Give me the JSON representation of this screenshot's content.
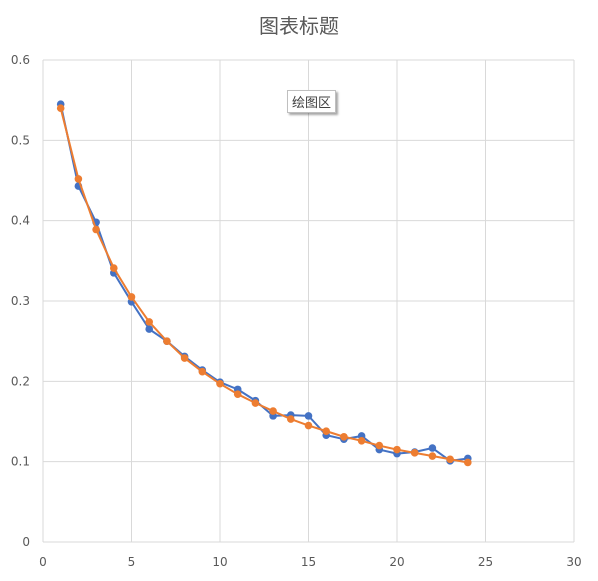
{
  "chart_data": {
    "type": "scatter",
    "title": "图表标题",
    "xlabel": "",
    "ylabel": "",
    "xlim": [
      0,
      30
    ],
    "ylim": [
      0,
      0.6
    ],
    "xticks": [
      0,
      5,
      10,
      15,
      20,
      25,
      30
    ],
    "yticks": [
      0,
      0.1,
      0.2,
      0.3,
      0.4,
      0.5,
      0.6
    ],
    "grid": true,
    "plot_area_tag": "绘图区",
    "series": [
      {
        "color": "#4472C4",
        "x": [
          1,
          2,
          3,
          4,
          5,
          6,
          7,
          8,
          9,
          10,
          11,
          12,
          13,
          14,
          15,
          16,
          17,
          18,
          19,
          20,
          21,
          22,
          23,
          24
        ],
        "y": [
          0.545,
          0.443,
          0.398,
          0.335,
          0.299,
          0.265,
          0.25,
          0.231,
          0.214,
          0.199,
          0.19,
          0.176,
          0.157,
          0.158,
          0.157,
          0.133,
          0.128,
          0.132,
          0.115,
          0.11,
          0.112,
          0.117,
          0.101,
          0.104
        ]
      },
      {
        "color": "#ED7D31",
        "x": [
          1,
          2,
          3,
          4,
          5,
          6,
          7,
          8,
          9,
          10,
          11,
          12,
          13,
          14,
          15,
          16,
          17,
          18,
          19,
          20,
          21,
          22,
          23,
          24
        ],
        "y": [
          0.54,
          0.452,
          0.389,
          0.341,
          0.305,
          0.274,
          0.25,
          0.229,
          0.212,
          0.197,
          0.184,
          0.173,
          0.163,
          0.153,
          0.145,
          0.138,
          0.131,
          0.126,
          0.12,
          0.115,
          0.111,
          0.107,
          0.103,
          0.099
        ]
      }
    ]
  }
}
